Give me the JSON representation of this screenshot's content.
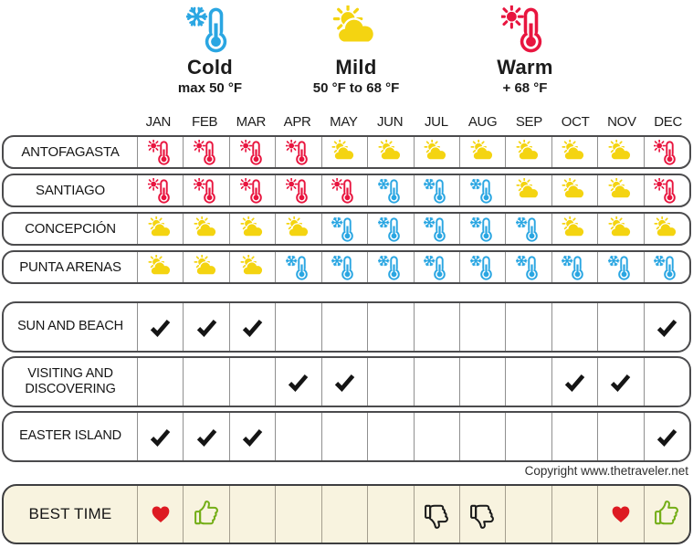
{
  "legend": {
    "items": [
      {
        "id": "cold",
        "label": "Cold",
        "range": "max 50 °F"
      },
      {
        "id": "mild",
        "label": "Mild",
        "range": "50 °F to 68 °F"
      },
      {
        "id": "warm",
        "label": "Warm",
        "range": "+ 68 °F"
      }
    ]
  },
  "copyright": "Copyright www.thetraveler.net",
  "colors": {
    "cold": "#2aa6e2",
    "mild": "#f4d411",
    "warm": "#e8153f",
    "check": "#151515",
    "heart": "#dd1a22",
    "thumbs_up": "#74ae17",
    "thumbs_down": "#1b1b1b",
    "best_row_bg": "#f8f3df"
  },
  "chart_data": {
    "type": "table",
    "title": "Best time to visit Chile — climate by city and month",
    "columns": [
      "JAN",
      "FEB",
      "MAR",
      "APR",
      "MAY",
      "JUN",
      "JUL",
      "AUG",
      "SEP",
      "OCT",
      "NOV",
      "DEC"
    ],
    "cell_legend": {
      "cold": "max 50 °F",
      "mild": "50 °F to 68 °F",
      "warm": "+ 68 °F"
    },
    "city_climate": {
      "rows": [
        {
          "label": "ANTOFAGASTA",
          "cells": [
            "warm",
            "warm",
            "warm",
            "warm",
            "mild",
            "mild",
            "mild",
            "mild",
            "mild",
            "mild",
            "mild",
            "warm"
          ]
        },
        {
          "label": "SANTIAGO",
          "cells": [
            "warm",
            "warm",
            "warm",
            "warm",
            "warm",
            "cold",
            "cold",
            "cold",
            "mild",
            "mild",
            "mild",
            "warm"
          ]
        },
        {
          "label": "CONCEPCIÓN",
          "cells": [
            "mild",
            "mild",
            "mild",
            "mild",
            "cold",
            "cold",
            "cold",
            "cold",
            "cold",
            "mild",
            "mild",
            "mild"
          ]
        },
        {
          "label": "PUNTA ARENAS",
          "cells": [
            "mild",
            "mild",
            "mild",
            "cold",
            "cold",
            "cold",
            "cold",
            "cold",
            "cold",
            "cold",
            "cold",
            "cold"
          ]
        }
      ]
    },
    "activities": {
      "rows": [
        {
          "label": "SUN AND BEACH",
          "cells": [
            "check",
            "check",
            "check",
            "",
            "",
            "",
            "",
            "",
            "",
            "",
            "",
            "check"
          ]
        },
        {
          "label": "VISITING AND DISCOVERING",
          "cells": [
            "",
            "",
            "",
            "check",
            "check",
            "",
            "",
            "",
            "",
            "check",
            "check",
            ""
          ]
        },
        {
          "label": "EASTER ISLAND",
          "cells": [
            "check",
            "check",
            "check",
            "",
            "",
            "",
            "",
            "",
            "",
            "",
            "",
            "check"
          ]
        }
      ]
    },
    "best_time": {
      "label": "BEST TIME",
      "cells": [
        "heart",
        "thumbs-up",
        "",
        "",
        "",
        "",
        "thumbs-down",
        "thumbs-down",
        "",
        "",
        "heart",
        "thumbs-up"
      ]
    }
  }
}
